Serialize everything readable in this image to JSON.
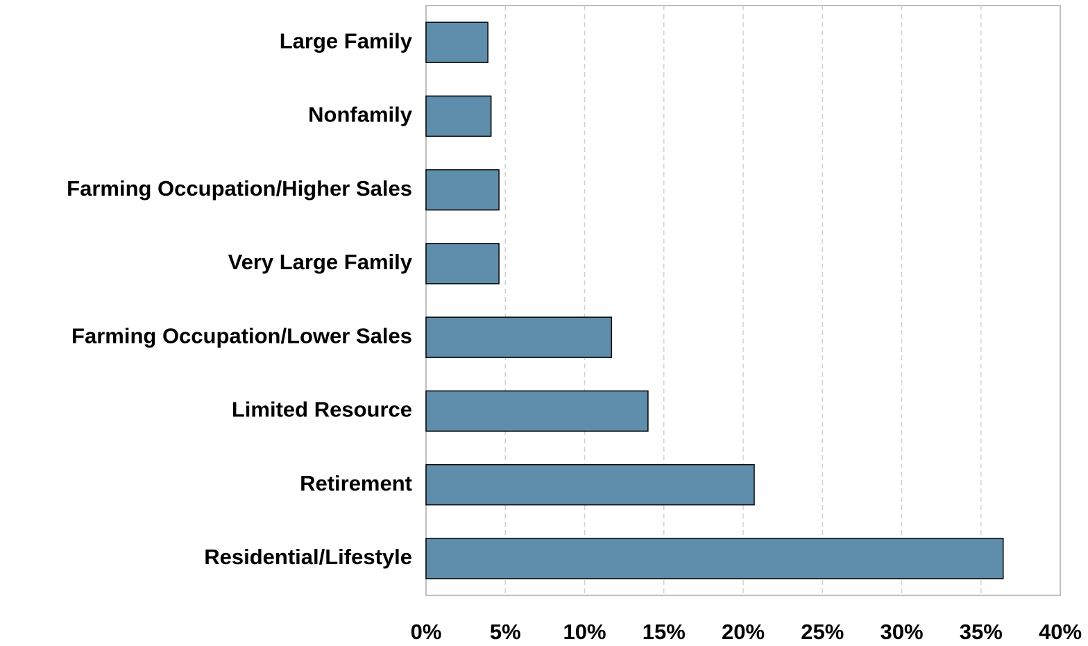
{
  "chart_data": {
    "type": "barh",
    "categories": [
      "Large Family",
      "Nonfamily",
      "Farming Occupation/Higher Sales",
      "Very Large Family",
      "Farming Occupation/Lower Sales",
      "Limited Resource",
      "Retirement",
      "Residential/Lifestyle"
    ],
    "values": [
      3.9,
      4.1,
      4.6,
      4.6,
      11.7,
      14.0,
      20.7,
      36.4
    ],
    "color": "#5f8dac",
    "xlim": [
      0,
      40
    ],
    "xticks": [
      {
        "value": 0,
        "label": "0%"
      },
      {
        "value": 5,
        "label": "5%"
      },
      {
        "value": 10,
        "label": "10%"
      },
      {
        "value": 15,
        "label": "15%"
      },
      {
        "value": 20,
        "label": "20%"
      },
      {
        "value": 25,
        "label": "25%"
      },
      {
        "value": 30,
        "label": "30%"
      },
      {
        "value": 35,
        "label": "35%"
      },
      {
        "value": 40,
        "label": "40%"
      }
    ],
    "grid": true
  }
}
